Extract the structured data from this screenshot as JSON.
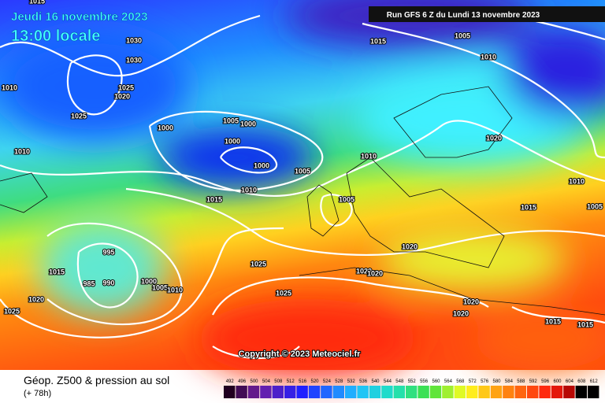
{
  "header": {
    "date": "Jeudi 16 novembre 2023",
    "time": "13:00 locale",
    "run": "Run GFS 6 Z du Lundi 13 novembre 2023"
  },
  "isobar_labels": [
    "1015",
    "1030",
    "1030",
    "1025",
    "1020",
    "1025",
    "1010",
    "1010",
    "1000",
    "1005",
    "1000",
    "1000",
    "1000",
    "1005",
    "1010",
    "1015",
    "1010",
    "1005",
    "1015",
    "1005",
    "1010",
    "1020",
    "1010",
    "1015",
    "1005",
    "1020",
    "1020",
    "1020",
    "995",
    "985",
    "990",
    "1000",
    "1005",
    "1010",
    "1015",
    "1020",
    "1025",
    "1025",
    "1025",
    "1020",
    "1020",
    "1015",
    "1015"
  ],
  "copyright": "Copyright © 2023 Meteociel.fr",
  "footer": {
    "title": "Géop. Z500 & pression au sol",
    "subtitle": "(+ 78h)"
  },
  "colorbar": {
    "labels": [
      "492",
      "496",
      "500",
      "504",
      "508",
      "512",
      "516",
      "520",
      "524",
      "528",
      "532",
      "536",
      "540",
      "544",
      "548",
      "552",
      "556",
      "560",
      "564",
      "568",
      "572",
      "576",
      "580",
      "584",
      "588",
      "592",
      "596",
      "600",
      "604",
      "608",
      "612"
    ]
  }
}
